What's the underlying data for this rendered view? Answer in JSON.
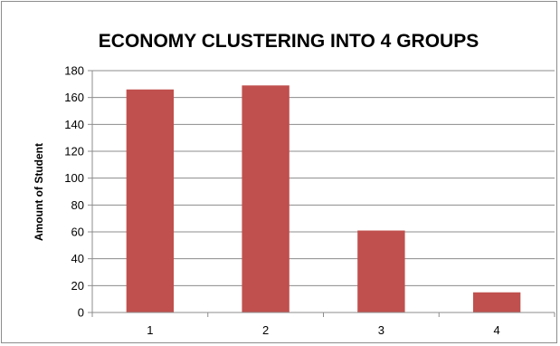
{
  "chart_data": {
    "type": "bar",
    "title": "ECONOMY CLUSTERING INTO 4 GROUPS",
    "xlabel": "",
    "ylabel": "Amount of Student",
    "categories": [
      "1",
      "2",
      "3",
      "4"
    ],
    "values": [
      166,
      169,
      61,
      15
    ],
    "ylim": [
      0,
      180
    ],
    "yticks": [
      0,
      20,
      40,
      60,
      80,
      100,
      120,
      140,
      160,
      180
    ],
    "grid": true,
    "legend": "none",
    "bar_color": "#c0504d"
  }
}
